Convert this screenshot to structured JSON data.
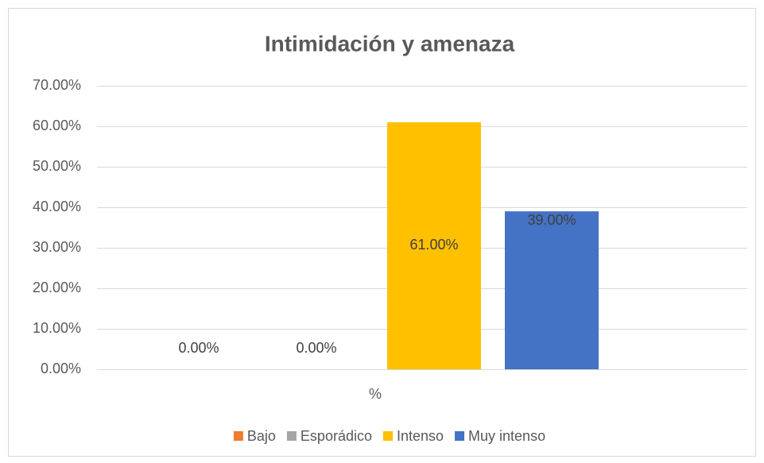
{
  "chart_data": {
    "type": "bar",
    "title": "Intimidación y amenaza",
    "categories": [
      "%"
    ],
    "series": [
      {
        "name": "Bajo",
        "color": "#ED7D31",
        "values": [
          0
        ],
        "value_labels": [
          "0.00%"
        ]
      },
      {
        "name": "Esporádico",
        "color": "#A5A5A5",
        "values": [
          0
        ],
        "value_labels": [
          "0.00%"
        ]
      },
      {
        "name": "Intenso",
        "color": "#FFC000",
        "values": [
          61
        ],
        "value_labels": [
          "61.00%"
        ]
      },
      {
        "name": "Muy intenso",
        "color": "#4472C4",
        "values": [
          39
        ],
        "value_labels": [
          "39.00%"
        ]
      }
    ],
    "ylim": [
      0,
      70
    ],
    "yticks": [
      {
        "value": 0,
        "label": "0.00%"
      },
      {
        "value": 10,
        "label": "10.00%"
      },
      {
        "value": 20,
        "label": "20.00%"
      },
      {
        "value": 30,
        "label": "30.00%"
      },
      {
        "value": 40,
        "label": "40.00%"
      },
      {
        "value": 50,
        "label": "50.00%"
      },
      {
        "value": 60,
        "label": "60.00%"
      },
      {
        "value": 70,
        "label": "70.00%"
      }
    ],
    "grid": true,
    "legend": "bottom"
  }
}
